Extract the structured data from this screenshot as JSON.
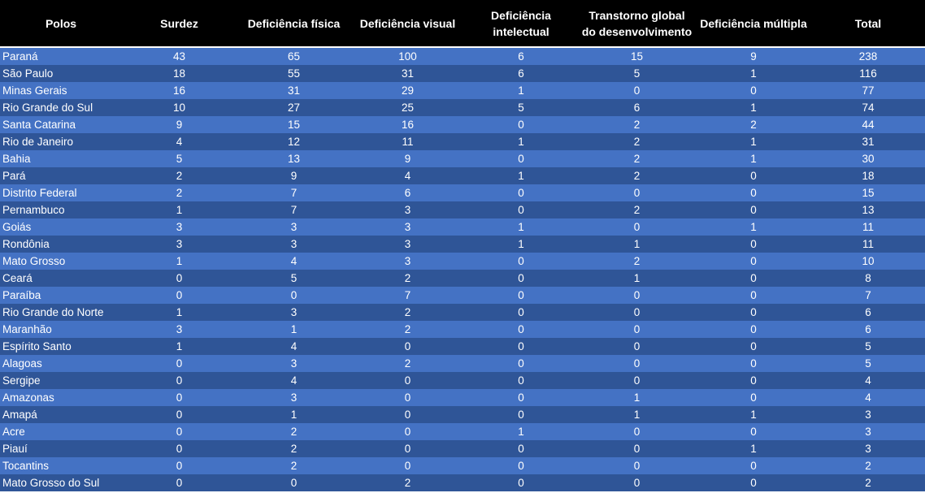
{
  "table": {
    "columns": [
      [
        "Polos"
      ],
      [
        "Surdez"
      ],
      [
        "Deficiência física"
      ],
      [
        "Deficiência visual"
      ],
      [
        "Deficiência",
        "intelectual"
      ],
      [
        "Transtorno global",
        "do desenvolvimento"
      ],
      [
        "Deficiência múltipla"
      ],
      [
        "Total"
      ]
    ],
    "rows": [
      [
        "Paraná",
        43,
        65,
        100,
        6,
        15,
        9,
        238
      ],
      [
        "São Paulo",
        18,
        55,
        31,
        6,
        5,
        1,
        116
      ],
      [
        "Minas Gerais",
        16,
        31,
        29,
        1,
        0,
        0,
        77
      ],
      [
        "Rio Grande do Sul",
        10,
        27,
        25,
        5,
        6,
        1,
        74
      ],
      [
        "Santa Catarina",
        9,
        15,
        16,
        0,
        2,
        2,
        44
      ],
      [
        "Rio de Janeiro",
        4,
        12,
        11,
        1,
        2,
        1,
        31
      ],
      [
        "Bahia",
        5,
        13,
        9,
        0,
        2,
        1,
        30
      ],
      [
        "Pará",
        2,
        9,
        4,
        1,
        2,
        0,
        18
      ],
      [
        "Distrito Federal",
        2,
        7,
        6,
        0,
        0,
        0,
        15
      ],
      [
        "Pernambuco",
        1,
        7,
        3,
        0,
        2,
        0,
        13
      ],
      [
        "Goiás",
        3,
        3,
        3,
        1,
        0,
        1,
        11
      ],
      [
        "Rondônia",
        3,
        3,
        3,
        1,
        1,
        0,
        11
      ],
      [
        "Mato Grosso",
        1,
        4,
        3,
        0,
        2,
        0,
        10
      ],
      [
        "Ceará",
        0,
        5,
        2,
        0,
        1,
        0,
        8
      ],
      [
        "Paraíba",
        0,
        0,
        7,
        0,
        0,
        0,
        7
      ],
      [
        "Rio Grande do Norte",
        1,
        3,
        2,
        0,
        0,
        0,
        6
      ],
      [
        "Maranhão",
        3,
        1,
        2,
        0,
        0,
        0,
        6
      ],
      [
        "Espírito Santo",
        1,
        4,
        0,
        0,
        0,
        0,
        5
      ],
      [
        "Alagoas",
        0,
        3,
        2,
        0,
        0,
        0,
        5
      ],
      [
        "Sergipe",
        0,
        4,
        0,
        0,
        0,
        0,
        4
      ],
      [
        "Amazonas",
        0,
        3,
        0,
        0,
        1,
        0,
        4
      ],
      [
        "Amapá",
        0,
        1,
        0,
        0,
        1,
        1,
        3
      ],
      [
        "Acre",
        0,
        2,
        0,
        1,
        0,
        0,
        3
      ],
      [
        "Piauí",
        0,
        2,
        0,
        0,
        0,
        1,
        3
      ],
      [
        "Tocantins",
        0,
        2,
        0,
        0,
        0,
        0,
        2
      ],
      [
        "Mato Grosso do Sul",
        0,
        0,
        2,
        0,
        0,
        0,
        2
      ]
    ]
  }
}
